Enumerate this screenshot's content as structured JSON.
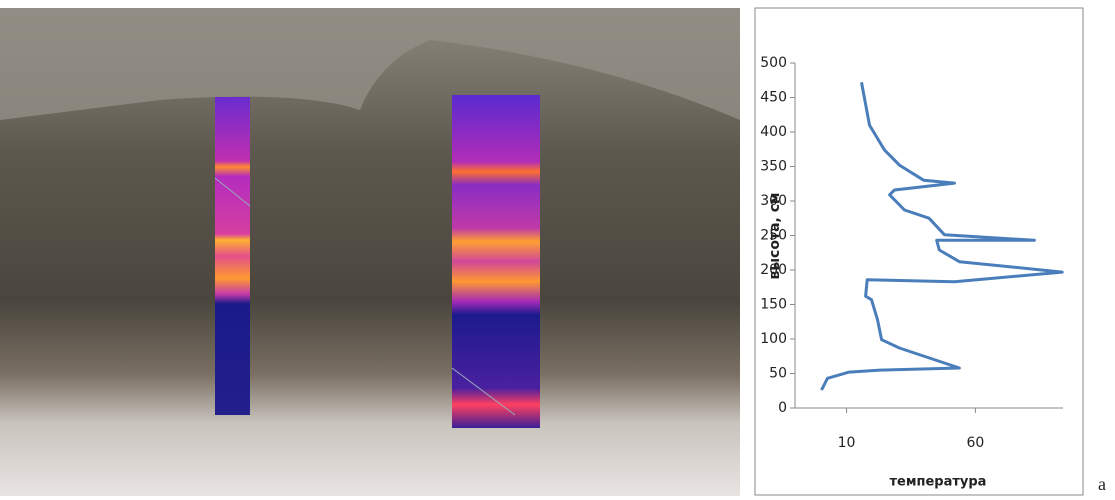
{
  "chart_data": {
    "type": "line",
    "x_label": "температура",
    "y_label": "высота, см",
    "x": [
      0.3,
      2.6,
      11,
      23,
      53.8,
      30.5,
      23.6,
      22,
      19.7,
      17.4,
      18,
      51.9,
      93.7,
      53.8,
      46,
      45,
      82.9,
      48,
      42,
      32.5,
      26.7,
      28.6,
      51.9,
      40,
      30.5,
      24.7,
      18.9,
      15.8
    ],
    "values": [
      26,
      43,
      52,
      55,
      58,
      87,
      99,
      128,
      157,
      162,
      186,
      183,
      197,
      212,
      229,
      243,
      243,
      251,
      275,
      287,
      309,
      316,
      326,
      330,
      352,
      374,
      410,
      472
    ],
    "color": "#4a7ebb",
    "xlim": [
      -10,
      94
    ],
    "xticks": [
      10,
      60
    ],
    "ylim": [
      0,
      500
    ],
    "yticks": [
      0,
      50,
      100,
      150,
      200,
      250,
      300,
      350,
      400,
      450,
      500
    ]
  },
  "panel_label": "а"
}
